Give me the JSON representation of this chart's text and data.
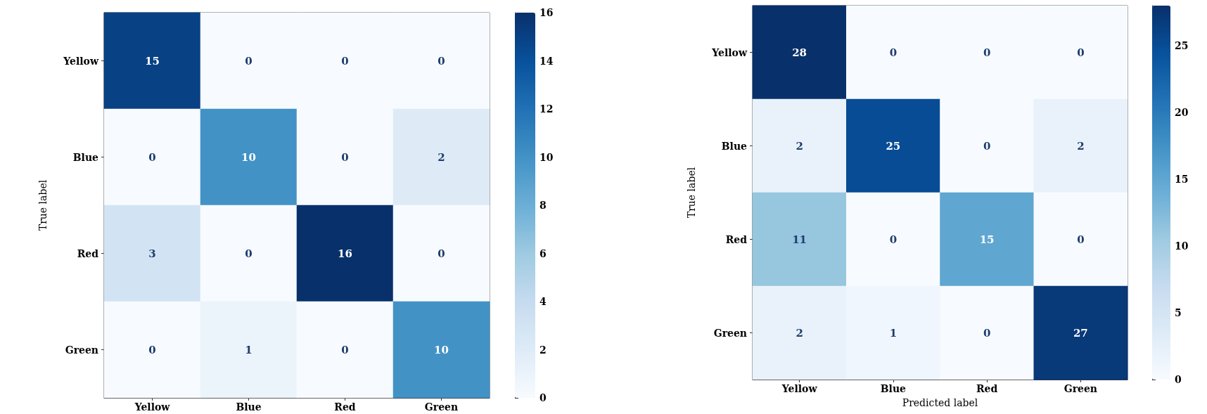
{
  "chart_data": [
    {
      "type": "heatmap",
      "ylabel": "True label",
      "categories": [
        "Yellow",
        "Blue",
        "Red",
        "Green"
      ],
      "y_categories": [
        "Yellow",
        "Blue",
        "Red",
        "Green"
      ],
      "cells": [
        [
          15,
          0,
          0,
          0
        ],
        [
          0,
          10,
          0,
          2
        ],
        [
          3,
          0,
          16,
          0
        ],
        [
          0,
          1,
          0,
          10
        ]
      ],
      "clim": [
        0,
        16
      ],
      "cticks": [
        0,
        2,
        4,
        6,
        8,
        10,
        12,
        14,
        16
      ],
      "data_labels": true
    },
    {
      "type": "heatmap",
      "ylabel": "True label",
      "xlabel": "Predicted label",
      "categories": [
        "Yellow",
        "Blue",
        "Red",
        "Green"
      ],
      "y_categories": [
        "Yellow",
        "Blue",
        "Red",
        "Green"
      ],
      "cells": [
        [
          28,
          0,
          0,
          0
        ],
        [
          2,
          25,
          0,
          2
        ],
        [
          11,
          0,
          15,
          0
        ],
        [
          2,
          1,
          0,
          27
        ]
      ],
      "clim": [
        0,
        28
      ],
      "cticks": [
        0,
        5,
        10,
        15,
        20,
        25
      ],
      "data_labels": true
    }
  ]
}
